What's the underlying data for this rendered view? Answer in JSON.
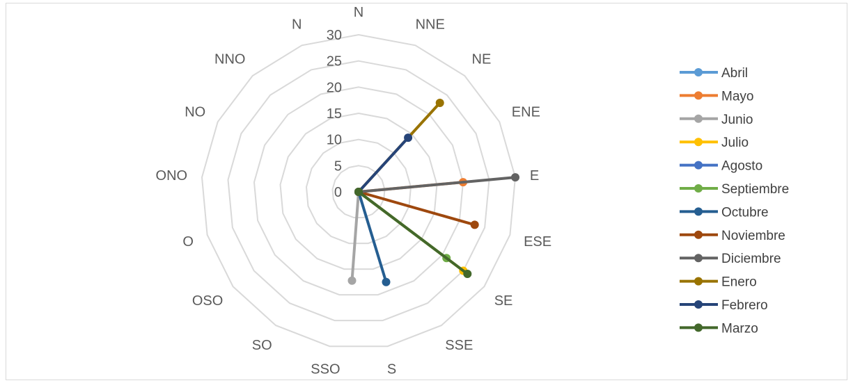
{
  "chart_data": {
    "type": "radar",
    "directions": [
      "N",
      "NNE",
      "NE",
      "ENE",
      "E",
      "ESE",
      "SE",
      "SSE",
      "S",
      "SSO",
      "SO",
      "OSO",
      "O",
      "ONO",
      "NO",
      "NNO",
      "N"
    ],
    "rlim": [
      0,
      30
    ],
    "ticks": [
      0,
      5,
      10,
      15,
      20,
      25,
      30
    ],
    "grid": true,
    "legend": "right",
    "series": [
      {
        "name": "Abril",
        "color": "#5b9bd5",
        "point": {
          "direction": 0,
          "value": 0
        }
      },
      {
        "name": "Mayo",
        "color": "#ed7d31",
        "point": {
          "direction": 4,
          "value": 20
        }
      },
      {
        "name": "Junio",
        "color": "#a5a5a5",
        "point": {
          "direction": 8.7,
          "value": 17
        }
      },
      {
        "name": "Julio",
        "color": "#ffc000",
        "point": {
          "direction": 6,
          "value": 25
        }
      },
      {
        "name": "Agosto",
        "color": "#4472c4",
        "point": {
          "direction": 0,
          "value": 0
        }
      },
      {
        "name": "Septiembre",
        "color": "#70ad47",
        "point": {
          "direction": 6,
          "value": 21
        }
      },
      {
        "name": "Octubre",
        "color": "#255e91",
        "point": {
          "direction": 7.7,
          "value": 18
        }
      },
      {
        "name": "Noviembre",
        "color": "#9e480e",
        "point": {
          "direction": 5,
          "value": 23
        }
      },
      {
        "name": "Diciembre",
        "color": "#636363",
        "point": {
          "direction": 4,
          "value": 30
        }
      },
      {
        "name": "Enero",
        "color": "#997300",
        "point": {
          "direction": 2,
          "value": 23
        }
      },
      {
        "name": "Febrero",
        "color": "#264478",
        "point": {
          "direction": 2,
          "value": 14
        }
      },
      {
        "name": "Marzo",
        "color": "#43682b",
        "point": {
          "direction": 6,
          "value": 26
        }
      }
    ]
  }
}
